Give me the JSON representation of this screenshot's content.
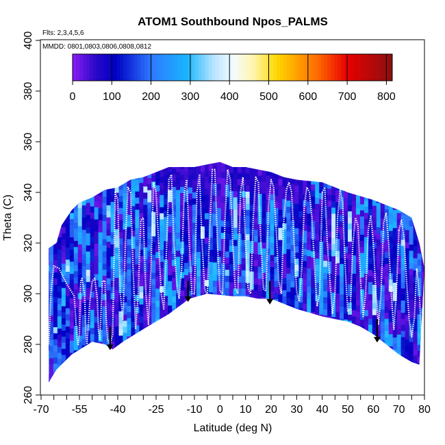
{
  "chart_data": {
    "type": "heatmap",
    "title": "ATOM1 Southbound Npos_PALMS",
    "flights_note": "Flts: 2,3,4,5,6",
    "dates_note": "MMDD: 0801,0803,0806,0808,0812",
    "xlabel": "Latitude (deg N)",
    "ylabel": "Theta (C)",
    "xlim": [
      -70,
      80
    ],
    "ylim": [
      260,
      400
    ],
    "x_ticks": [
      -70,
      -55,
      -40,
      -25,
      -10,
      0,
      10,
      20,
      30,
      40,
      50,
      60,
      70,
      80
    ],
    "x_minor_ticks": [
      -65,
      -60,
      -50,
      -45,
      -35,
      -30,
      -20,
      -15,
      -5,
      5,
      15,
      25,
      35,
      45,
      55,
      65,
      75
    ],
    "y_ticks": [
      260,
      280,
      300,
      320,
      340,
      360,
      380,
      400
    ],
    "colorbar": {
      "min": 0,
      "max": 815,
      "ticks": [
        0,
        100,
        200,
        300,
        400,
        500,
        600,
        700,
        800
      ],
      "color_stops": [
        {
          "value": 0,
          "color": "#8c1cf5"
        },
        {
          "value": 60,
          "color": "#2808c8"
        },
        {
          "value": 110,
          "color": "#0000c4"
        },
        {
          "value": 200,
          "color": "#2e78ff"
        },
        {
          "value": 290,
          "color": "#18b4ff"
        },
        {
          "value": 360,
          "color": "#b8e4ff"
        },
        {
          "value": 410,
          "color": "#f4fbff"
        },
        {
          "value": 460,
          "color": "#fff6b0"
        },
        {
          "value": 520,
          "color": "#ffd800"
        },
        {
          "value": 620,
          "color": "#ff7000"
        },
        {
          "value": 700,
          "color": "#e80000"
        },
        {
          "value": 815,
          "color": "#8a1010"
        }
      ]
    },
    "top_boundary": [
      [
        -67,
        318
      ],
      [
        -64,
        320
      ],
      [
        -62,
        327
      ],
      [
        -58,
        333
      ],
      [
        -55,
        336
      ],
      [
        -50,
        338
      ],
      [
        -45,
        341
      ],
      [
        -40,
        342
      ],
      [
        -35,
        345
      ],
      [
        -30,
        346
      ],
      [
        -20,
        350
      ],
      [
        -10,
        350
      ],
      [
        -5,
        351
      ],
      [
        0,
        352
      ],
      [
        5,
        350
      ],
      [
        10,
        350
      ],
      [
        20,
        348
      ],
      [
        25,
        346
      ],
      [
        30,
        345
      ],
      [
        40,
        344
      ],
      [
        50,
        340
      ],
      [
        60,
        337
      ],
      [
        70,
        333
      ],
      [
        75,
        330
      ],
      [
        78,
        320
      ],
      [
        80,
        310
      ]
    ],
    "bottom_boundary": [
      [
        -67,
        265
      ],
      [
        -64,
        270
      ],
      [
        -58,
        276
      ],
      [
        -50,
        281
      ],
      [
        -45,
        280
      ],
      [
        -42,
        278
      ],
      [
        -38,
        281
      ],
      [
        -30,
        286
      ],
      [
        -20,
        292
      ],
      [
        -12,
        298
      ],
      [
        -5,
        300
      ],
      [
        5,
        299
      ],
      [
        10,
        299
      ],
      [
        15,
        298
      ],
      [
        20,
        298
      ],
      [
        30,
        294
      ],
      [
        40,
        291
      ],
      [
        50,
        289
      ],
      [
        55,
        287
      ],
      [
        60,
        284
      ],
      [
        65,
        280
      ],
      [
        70,
        276
      ],
      [
        75,
        273
      ],
      [
        78,
        272
      ]
    ],
    "cell_seed": 7,
    "profile_paths": [
      {
        "name": "S1",
        "lat": [
          -67,
          -66,
          -65,
          -63,
          -60,
          -57,
          -56,
          -55.5,
          -55,
          -54.5,
          -54,
          -53
        ],
        "theta": [
          280,
          302,
          311,
          310,
          304,
          299,
          283,
          280,
          284,
          305,
          306,
          300
        ]
      },
      {
        "name": "S2",
        "lat": [
          -53,
          -52.5,
          -52,
          -51,
          -50,
          -49,
          -48,
          -47.5,
          -47,
          -46,
          -45
        ],
        "theta": [
          300,
          285,
          280,
          296,
          305,
          306,
          298,
          285,
          282,
          305,
          305
        ]
      },
      {
        "name": "S3",
        "lat": [
          -45,
          -44.5,
          -44,
          -43,
          -42,
          -41,
          -40,
          -39,
          -38,
          -37,
          -36,
          -35
        ],
        "theta": [
          305,
          290,
          282,
          280,
          284,
          340,
          337,
          300,
          290,
          320,
          342,
          340
        ]
      },
      {
        "name": "S4",
        "lat": [
          -35,
          -34,
          -33,
          -32,
          -31,
          -30,
          -29,
          -28,
          -27,
          -26,
          -25,
          -24
        ],
        "theta": [
          340,
          310,
          286,
          300,
          329,
          330,
          300,
          288,
          310,
          344,
          340,
          320
        ]
      },
      {
        "name": "S5",
        "lat": [
          -24,
          -23,
          -22,
          -21,
          -20,
          -19,
          -18,
          -17,
          -16,
          -15,
          -14,
          -13,
          -12,
          -11,
          -10,
          -9,
          -8
        ],
        "theta": [
          320,
          300,
          294,
          315,
          345,
          347,
          320,
          305,
          298,
          310,
          340,
          345,
          320,
          300,
          300,
          340,
          347
        ]
      },
      {
        "name": "S6",
        "lat": [
          -8,
          -7,
          -6,
          -5,
          -4,
          -3,
          -2,
          -1,
          0,
          1,
          2,
          3,
          4,
          5,
          6,
          7,
          8
        ],
        "theta": [
          347,
          320,
          302,
          299,
          325,
          349,
          349,
          320,
          301,
          300,
          330,
          349,
          345,
          320,
          302,
          300,
          340
        ]
      },
      {
        "name": "S7",
        "lat": [
          8,
          9,
          10,
          11,
          12,
          13,
          14,
          15,
          16,
          17,
          18,
          19,
          20,
          21,
          22,
          23,
          24,
          25
        ],
        "theta": [
          340,
          346,
          320,
          302,
          300,
          330,
          346,
          344,
          320,
          302,
          301,
          335,
          345,
          342,
          325,
          305,
          300,
          330
        ]
      },
      {
        "name": "S8",
        "lat": [
          25,
          26,
          27,
          28,
          29,
          30,
          31,
          32,
          33,
          34,
          35,
          36,
          37,
          38,
          39,
          40
        ],
        "theta": [
          330,
          341,
          344,
          340,
          320,
          301,
          297,
          310,
          335,
          342,
          340,
          330,
          310,
          295,
          300,
          340
        ]
      },
      {
        "name": "S9",
        "lat": [
          40,
          41,
          42,
          43,
          44,
          45,
          46,
          47,
          48,
          49,
          50,
          51,
          52,
          53,
          54,
          55
        ],
        "theta": [
          340,
          342,
          320,
          305,
          292,
          300,
          330,
          341,
          336,
          310,
          293,
          294,
          320,
          330,
          327,
          305
        ]
      },
      {
        "name": "S10",
        "lat": [
          55,
          56,
          57,
          58,
          59,
          60,
          61,
          62,
          63,
          64,
          65,
          66,
          67,
          68,
          69,
          70
        ],
        "theta": [
          305,
          291,
          300,
          325,
          331,
          320,
          300,
          288,
          300,
          328,
          332,
          320,
          300,
          286,
          300,
          325
        ]
      },
      {
        "name": "S11",
        "lat": [
          70,
          71,
          72,
          73,
          74,
          75,
          76,
          77,
          78,
          79
        ],
        "theta": [
          325,
          329,
          322,
          305,
          290,
          283,
          290,
          310,
          300,
          280
        ]
      }
    ],
    "arrows": [
      {
        "lat": -43,
        "theta_start": 287,
        "theta_end": 278
      },
      {
        "lat": -12.5,
        "theta_start": 305,
        "theta_end": 297
      },
      {
        "lat": 19.5,
        "theta_start": 305,
        "theta_end": 296
      },
      {
        "lat": 61.5,
        "theta_start": 290,
        "theta_end": 281
      }
    ]
  }
}
